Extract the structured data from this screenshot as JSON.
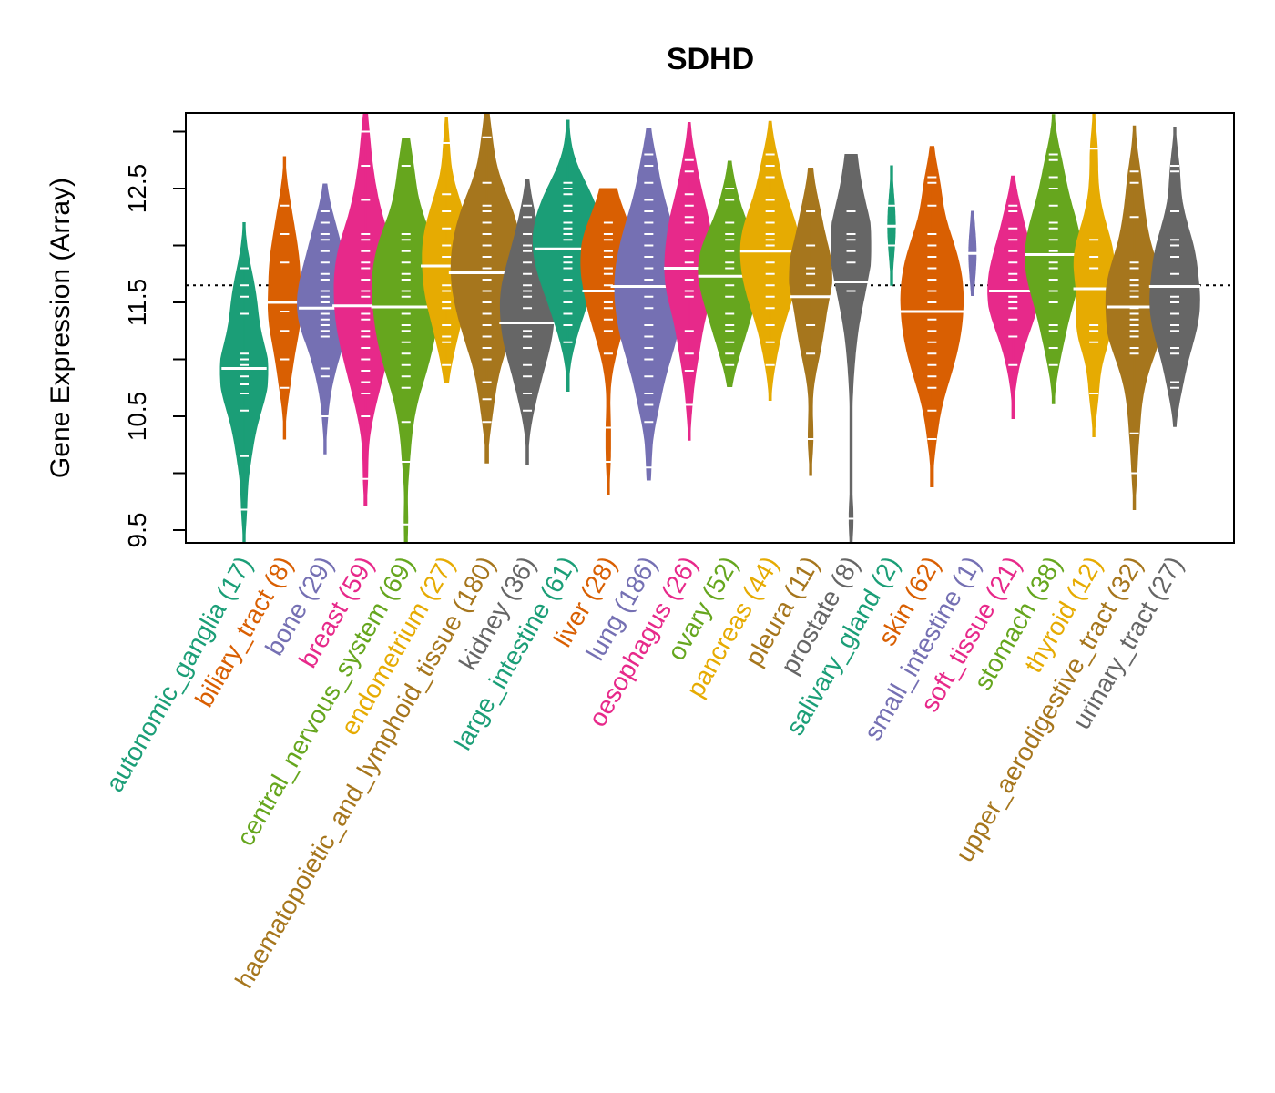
{
  "chart_data": {
    "type": "violin",
    "title": "SDHD",
    "xlabel": "",
    "ylabel": "Gene Expression (Array)",
    "ylim": [
      9.39,
      13.16
    ],
    "yticks": [
      9.5,
      10,
      10.5,
      11,
      11.5,
      12,
      12.5,
      13
    ],
    "ytick_labels": [
      "9.5",
      "",
      "10.5",
      "",
      "11.5",
      "",
      "12.5",
      ""
    ],
    "reference_line": {
      "value": 11.65,
      "style": "dotted",
      "color": "#000000"
    },
    "grid": false,
    "legend": "none",
    "palette": [
      "#1B9E77",
      "#D95F02",
      "#7570B3",
      "#E7298A",
      "#66A61E",
      "#E6AB02",
      "#A6761D",
      "#666666"
    ],
    "groups": [
      {
        "name": "autonomic_ganglia",
        "n": 17,
        "color": "#1B9E77",
        "median": 10.92,
        "min": 9.39,
        "max": 12.2,
        "peak": 10.9,
        "samples": [
          10.15,
          10.55,
          10.7,
          10.78,
          10.85,
          10.95,
          11.0,
          11.05,
          11.4,
          11.55,
          11.65,
          11.8,
          9.68
        ]
      },
      {
        "name": "biliary_tract",
        "n": 8,
        "color": "#D95F02",
        "median": 11.5,
        "min": 10.3,
        "max": 12.78,
        "peak": 11.6,
        "samples": [
          10.75,
          11.0,
          11.25,
          11.42,
          11.85,
          12.1,
          12.35
        ]
      },
      {
        "name": "bone",
        "n": 29,
        "color": "#7570B3",
        "median": 11.45,
        "min": 10.17,
        "max": 12.54,
        "peak": 11.5,
        "samples": [
          10.5,
          10.85,
          10.92,
          11.2,
          11.25,
          11.3,
          11.35,
          11.4,
          11.5,
          11.55,
          11.6,
          11.7,
          11.75,
          11.85,
          11.95,
          12.05,
          12.1,
          12.2,
          12.3
        ]
      },
      {
        "name": "breast",
        "n": 59,
        "color": "#E7298A",
        "median": 11.47,
        "min": 9.72,
        "max": 13.16,
        "peak": 11.6,
        "samples": [
          9.95,
          10.5,
          10.7,
          10.8,
          10.9,
          11.0,
          11.1,
          11.2,
          11.25,
          11.35,
          11.4,
          11.55,
          11.6,
          11.7,
          11.8,
          11.85,
          11.95,
          12.05,
          12.1,
          12.4,
          12.7,
          13.0
        ]
      },
      {
        "name": "central_nervous_system",
        "n": 69,
        "color": "#66A61E",
        "median": 11.46,
        "min": 9.39,
        "max": 12.94,
        "peak": 11.6,
        "samples": [
          9.55,
          10.1,
          10.45,
          10.75,
          10.85,
          10.95,
          11.05,
          11.15,
          11.25,
          11.3,
          11.4,
          11.55,
          11.6,
          11.7,
          11.75,
          11.85,
          11.95,
          12.05,
          12.1,
          12.7
        ]
      },
      {
        "name": "endometrium",
        "n": 27,
        "color": "#E6AB02",
        "median": 11.82,
        "min": 10.8,
        "max": 13.12,
        "peak": 11.9,
        "samples": [
          10.95,
          11.15,
          11.2,
          11.3,
          11.45,
          11.5,
          11.6,
          11.65,
          11.9,
          12.0,
          12.15,
          12.3,
          12.45,
          12.9
        ]
      },
      {
        "name": "haematopoietic_and_lymphoid_tissue",
        "n": 180,
        "color": "#A6761D",
        "median": 11.76,
        "min": 10.09,
        "max": 13.16,
        "peak": 11.8,
        "samples": [
          10.45,
          10.65,
          10.8,
          11.0,
          11.1,
          11.2,
          11.3,
          11.4,
          11.5,
          11.6,
          11.7,
          11.8,
          11.9,
          12.0,
          12.1,
          12.2,
          12.3,
          12.35,
          12.55,
          12.95
        ]
      },
      {
        "name": "kidney",
        "n": 36,
        "color": "#666666",
        "median": 11.32,
        "min": 10.08,
        "max": 12.58,
        "peak": 11.4,
        "samples": [
          10.55,
          10.7,
          10.85,
          10.95,
          11.1,
          11.2,
          11.25,
          11.45,
          11.55,
          11.6,
          11.65,
          11.75,
          11.85,
          11.95,
          12.0,
          12.1,
          12.25,
          12.35
        ]
      },
      {
        "name": "large_intestine",
        "n": 61,
        "color": "#1B9E77",
        "median": 11.97,
        "min": 10.72,
        "max": 13.1,
        "peak": 12.0,
        "samples": [
          11.15,
          11.3,
          11.4,
          11.5,
          11.6,
          11.7,
          11.8,
          11.85,
          11.9,
          12.05,
          12.1,
          12.15,
          12.2,
          12.3,
          12.35,
          12.45,
          12.5,
          12.55
        ]
      },
      {
        "name": "liver",
        "n": 28,
        "color": "#D95F02",
        "median": 11.6,
        "min": 9.81,
        "max": 12.5,
        "peak": 11.85,
        "samples": [
          10.1,
          10.4,
          11.05,
          11.25,
          11.35,
          11.45,
          11.5,
          11.65,
          11.75,
          11.8,
          11.9,
          11.95,
          12.05,
          12.1,
          12.2
        ]
      },
      {
        "name": "lung",
        "n": 186,
        "color": "#7570B3",
        "median": 11.64,
        "min": 9.94,
        "max": 13.03,
        "peak": 11.6,
        "samples": [
          10.05,
          10.45,
          10.6,
          10.7,
          10.85,
          11.0,
          11.1,
          11.2,
          11.3,
          11.45,
          11.55,
          11.7,
          11.8,
          11.9,
          12.0,
          12.1,
          12.2,
          12.3,
          12.4,
          12.55,
          12.7,
          12.8
        ]
      },
      {
        "name": "oesophagus",
        "n": 26,
        "color": "#E7298A",
        "median": 11.8,
        "min": 10.29,
        "max": 13.08,
        "peak": 11.8,
        "samples": [
          10.6,
          10.9,
          11.05,
          11.25,
          11.55,
          11.6,
          11.7,
          11.85,
          11.95,
          12.05,
          12.2,
          12.25,
          12.35,
          12.45,
          12.65,
          12.75
        ]
      },
      {
        "name": "ovary",
        "n": 52,
        "color": "#66A61E",
        "median": 11.73,
        "min": 10.76,
        "max": 12.74,
        "peak": 11.75,
        "samples": [
          10.95,
          11.05,
          11.15,
          11.25,
          11.3,
          11.4,
          11.55,
          11.65,
          11.8,
          11.85,
          11.95,
          12.05,
          12.1,
          12.2,
          12.4,
          12.5
        ]
      },
      {
        "name": "pancreas",
        "n": 44,
        "color": "#E6AB02",
        "median": 11.95,
        "min": 10.64,
        "max": 13.09,
        "peak": 11.9,
        "samples": [
          10.95,
          11.15,
          11.3,
          11.45,
          11.55,
          11.65,
          11.75,
          11.85,
          12.0,
          12.05,
          12.1,
          12.2,
          12.3,
          12.4,
          12.6,
          12.7,
          12.8
        ]
      },
      {
        "name": "pleura",
        "n": 11,
        "color": "#A6761D",
        "median": 11.55,
        "min": 9.98,
        "max": 12.68,
        "peak": 11.7,
        "samples": [
          10.3,
          11.05,
          11.3,
          11.65,
          11.75,
          11.8,
          12.0,
          12.3
        ]
      },
      {
        "name": "prostate",
        "n": 8,
        "color": "#666666",
        "median": 11.68,
        "min": 9.39,
        "max": 12.8,
        "peak": 12.0,
        "samples": [
          9.6,
          11.6,
          11.85,
          11.95,
          12.05,
          12.1,
          12.3
        ]
      },
      {
        "name": "salivary_gland",
        "n": 2,
        "color": "#1B9E77",
        "median": 12.17,
        "min": 11.65,
        "max": 12.7,
        "peak": 12.17,
        "samples": [
          12.0,
          12.35
        ]
      },
      {
        "name": "skin",
        "n": 62,
        "color": "#D95F02",
        "median": 11.42,
        "min": 9.88,
        "max": 12.87,
        "peak": 11.5,
        "samples": [
          10.3,
          10.55,
          10.75,
          10.85,
          10.95,
          11.05,
          11.15,
          11.25,
          11.35,
          11.5,
          11.6,
          11.7,
          11.8,
          11.9,
          12.0,
          12.1,
          12.35,
          12.55,
          12.6
        ]
      },
      {
        "name": "small_intestine",
        "n": 1,
        "color": "#7570B3",
        "median": 11.93,
        "min": 11.56,
        "max": 12.3,
        "peak": 11.93,
        "samples": [
          11.93
        ]
      },
      {
        "name": "soft_tissue",
        "n": 21,
        "color": "#E7298A",
        "median": 11.6,
        "min": 10.48,
        "max": 12.61,
        "peak": 11.6,
        "samples": [
          10.95,
          11.2,
          11.35,
          11.45,
          11.5,
          11.55,
          11.7,
          11.75,
          11.85,
          11.95,
          12.05,
          12.15,
          12.3,
          12.35
        ]
      },
      {
        "name": "stomach",
        "n": 38,
        "color": "#66A61E",
        "median": 11.92,
        "min": 10.61,
        "max": 13.15,
        "peak": 11.9,
        "samples": [
          10.95,
          11.1,
          11.25,
          11.3,
          11.5,
          11.6,
          11.7,
          11.8,
          11.85,
          11.95,
          12.05,
          12.15,
          12.2,
          12.35,
          12.5,
          12.6,
          12.75,
          12.8
        ]
      },
      {
        "name": "thyroid",
        "n": 12,
        "color": "#E6AB02",
        "median": 11.62,
        "min": 10.32,
        "max": 13.16,
        "peak": 11.7,
        "samples": [
          10.7,
          11.15,
          11.25,
          11.3,
          11.8,
          11.9,
          12.05,
          12.85
        ]
      },
      {
        "name": "upper_aerodigestive_tract",
        "n": 32,
        "color": "#A6761D",
        "median": 11.46,
        "min": 9.68,
        "max": 13.05,
        "peak": 11.5,
        "samples": [
          10.0,
          10.35,
          11.05,
          11.1,
          11.2,
          11.25,
          11.3,
          11.35,
          11.4,
          11.45,
          11.55,
          11.6,
          11.65,
          11.7,
          11.8,
          11.85,
          12.25,
          12.55,
          12.65
        ]
      },
      {
        "name": "urinary_tract",
        "n": 27,
        "color": "#666666",
        "median": 11.64,
        "min": 10.41,
        "max": 13.04,
        "peak": 11.6,
        "samples": [
          10.75,
          10.8,
          11.05,
          11.1,
          11.25,
          11.3,
          11.4,
          11.5,
          11.55,
          11.75,
          11.9,
          12.0,
          12.05,
          12.3,
          12.65,
          12.7
        ]
      }
    ]
  }
}
